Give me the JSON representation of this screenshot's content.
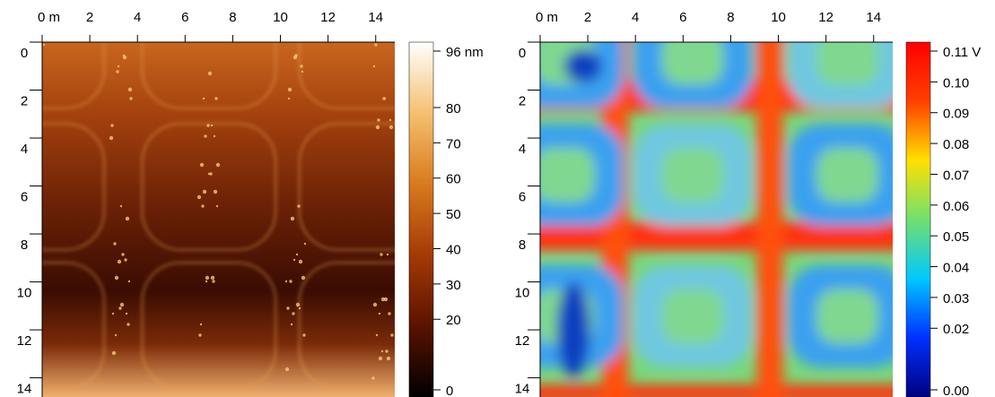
{
  "chart_data": [
    {
      "type": "heatmap",
      "colormap": "afmhot",
      "xlim": [
        0,
        14.8
      ],
      "ylim": [
        0,
        14.8
      ],
      "xticks": [
        {
          "value": 0,
          "label": "0 m"
        },
        2,
        4,
        6,
        8,
        10,
        12,
        14
      ],
      "yticks": [
        0,
        2,
        4,
        6,
        8,
        10,
        12,
        14
      ],
      "clim": [
        0,
        96
      ],
      "cticks": [
        {
          "value": 96,
          "label": "96 nm"
        },
        80,
        70,
        60,
        50,
        40,
        30,
        20,
        0
      ]
    },
    {
      "type": "heatmap",
      "colormap": "jet",
      "xlim": [
        0,
        14.8
      ],
      "ylim": [
        0,
        14.8
      ],
      "xticks": [
        {
          "value": 0,
          "label": "0 m"
        },
        2,
        4,
        6,
        8,
        10,
        12,
        14
      ],
      "yticks": [
        0,
        2,
        4,
        6,
        8,
        10,
        12,
        14
      ],
      "clim": [
        0,
        0.11
      ],
      "cticks": [
        {
          "value": 0.11,
          "label": "0.11 V"
        },
        {
          "value": 0.1,
          "label": "0.10"
        },
        0.09,
        0.08,
        0.07,
        0.06,
        0.05,
        0.04,
        0.03,
        0.02,
        {
          "value": 0,
          "label": "0.00"
        }
      ]
    }
  ]
}
